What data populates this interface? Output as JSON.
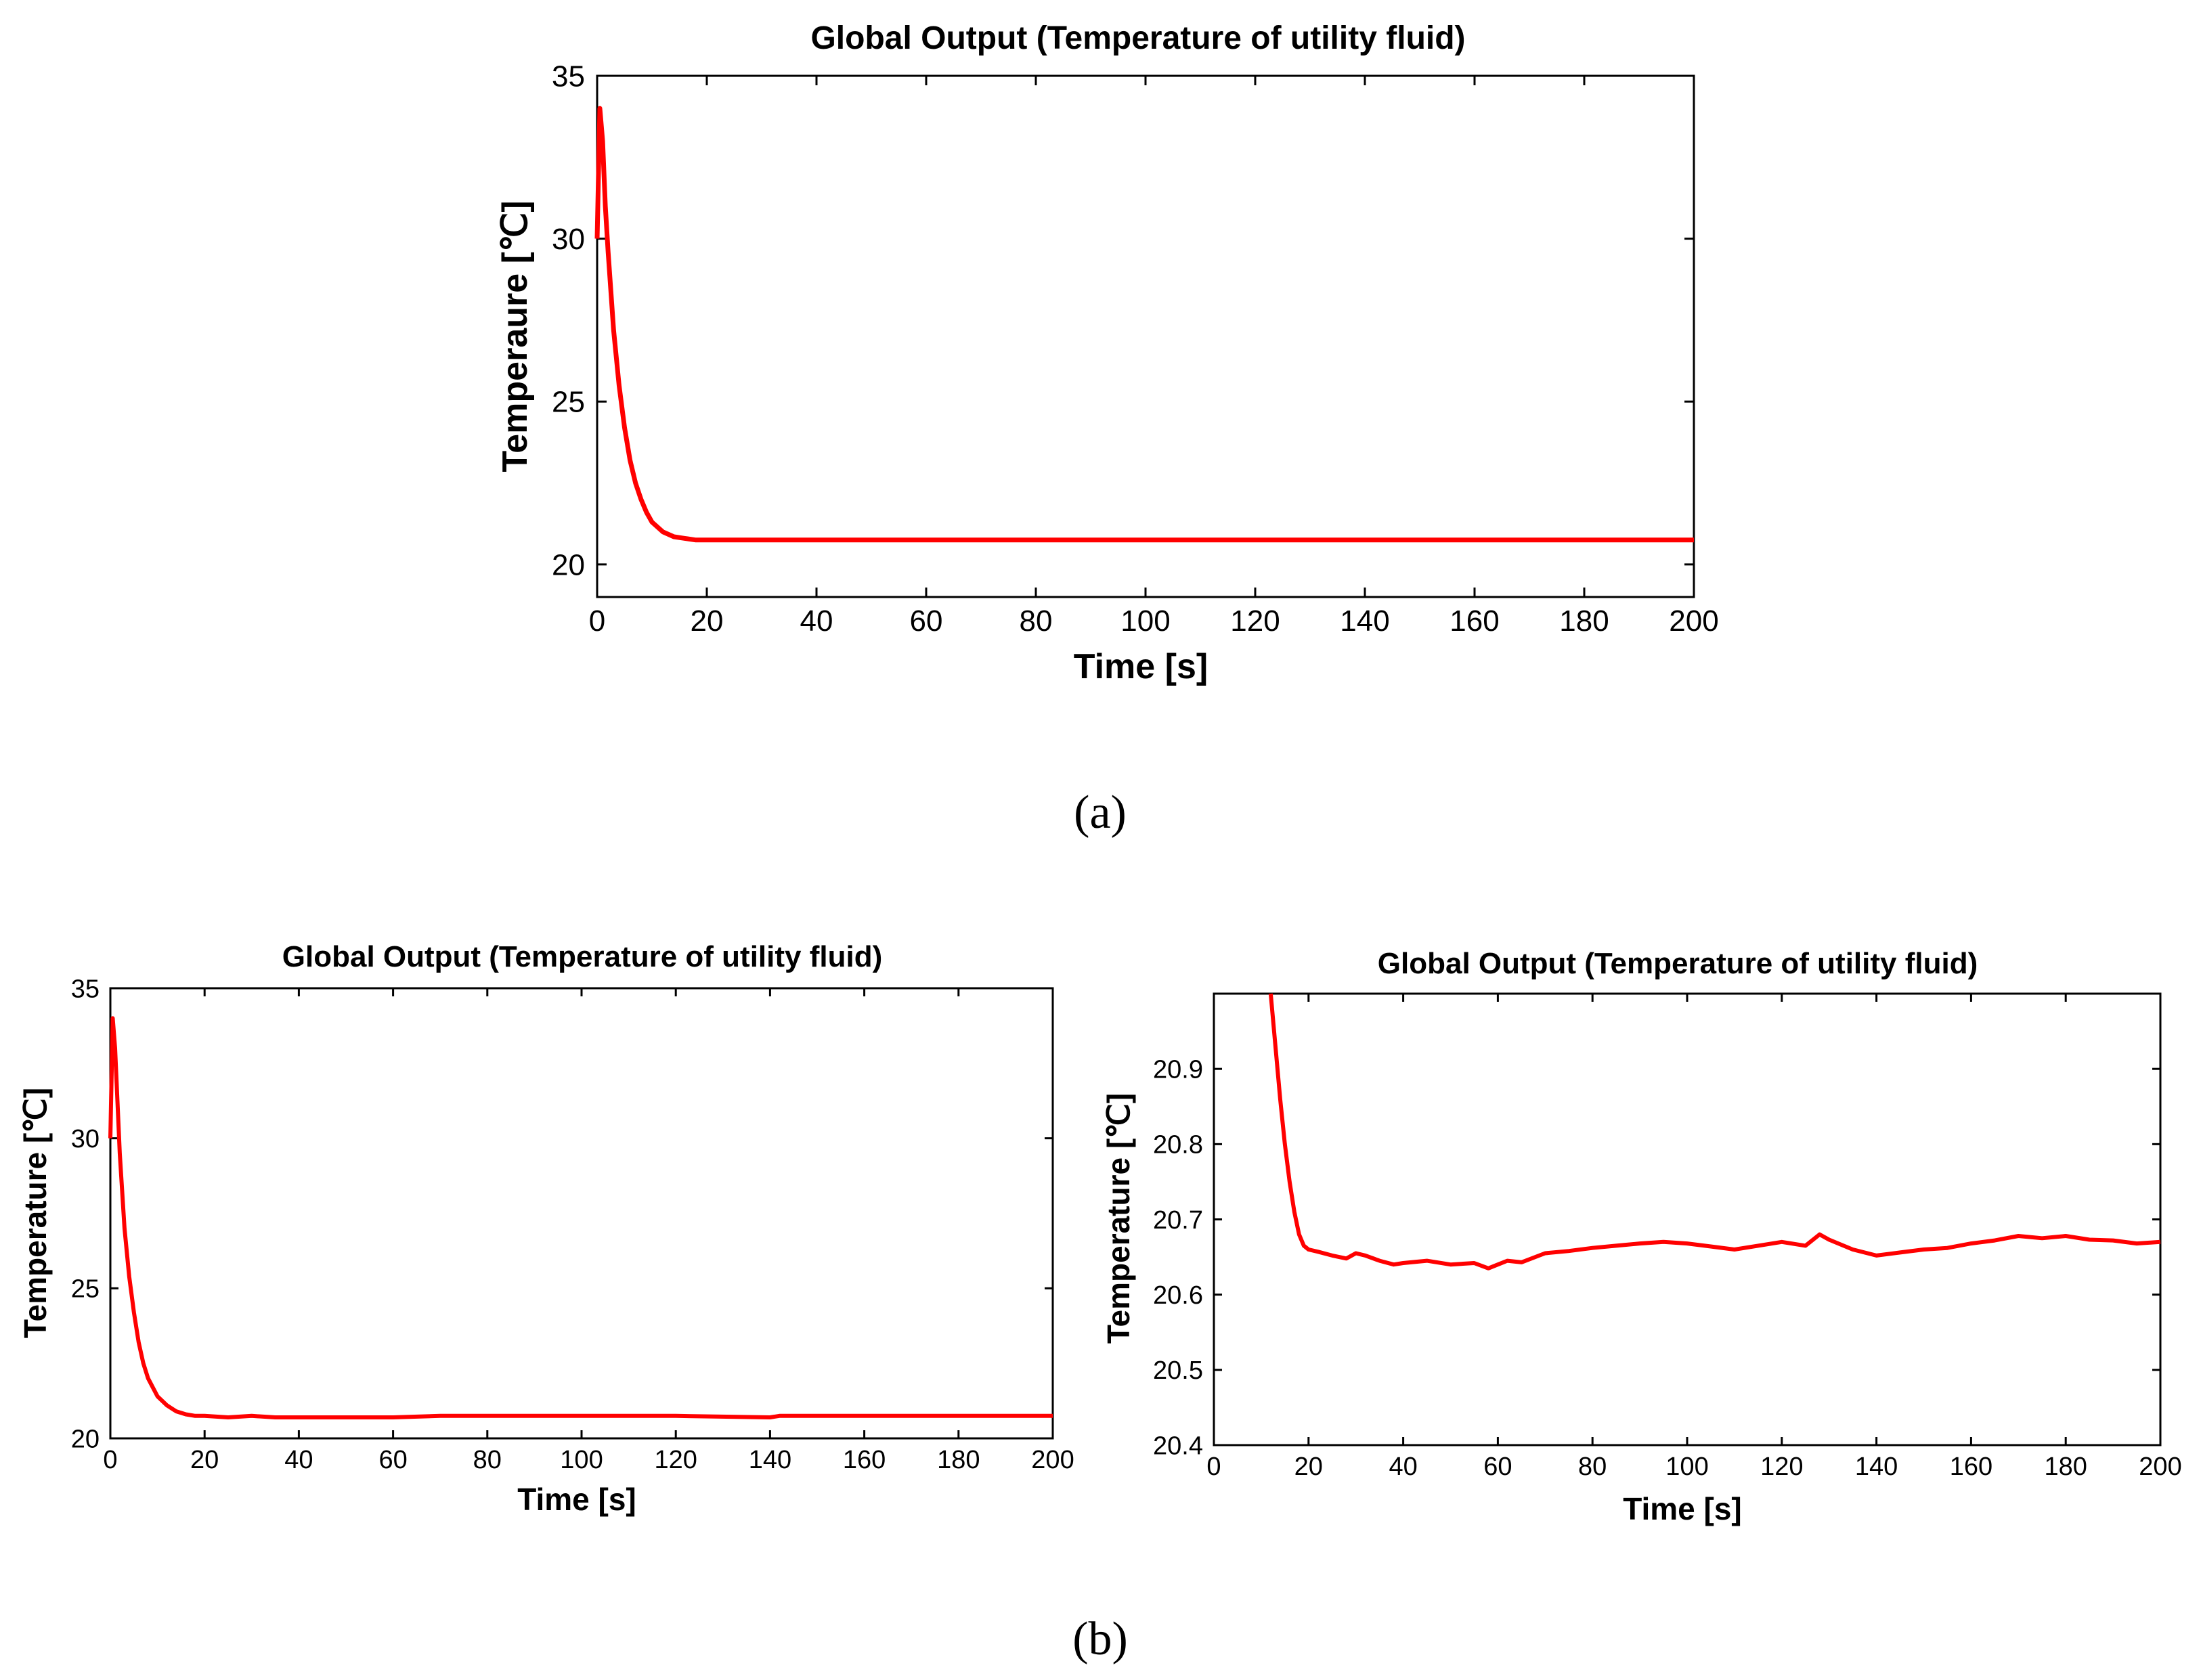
{
  "figure": {
    "panel_a_label": "(a)",
    "panel_b_label": "(b)"
  },
  "chart_data": [
    {
      "id": "a",
      "type": "line",
      "title": "Global Output (Temperature of utility fluid)",
      "xlabel": "Time [s]",
      "ylabel": "Temperaure [℃]",
      "xlim": [
        0,
        200
      ],
      "ylim": [
        19,
        35
      ],
      "xticks": [
        0,
        20,
        40,
        60,
        80,
        100,
        120,
        140,
        160,
        180,
        200
      ],
      "yticks": [
        20,
        25,
        30,
        35
      ],
      "ytick_decimals": 0,
      "grid": false,
      "color": "#ff0000",
      "series": [
        {
          "name": "utility fluid temperature",
          "x": [
            0,
            0.5,
            1,
            1.5,
            2,
            3,
            4,
            5,
            6,
            7,
            8,
            9,
            10,
            12,
            14,
            16,
            18,
            20,
            200
          ],
          "y": [
            30,
            34,
            33,
            31,
            29.6,
            27.2,
            25.5,
            24.2,
            23.2,
            22.5,
            22,
            21.6,
            21.3,
            21,
            20.85,
            20.8,
            20.75,
            20.75,
            20.75
          ]
        }
      ]
    },
    {
      "id": "b-left",
      "type": "line",
      "title": "Global Output (Temperature of utility fluid)",
      "xlabel": "Time [s]",
      "ylabel": "Temperature [℃]",
      "xlim": [
        0,
        200
      ],
      "ylim": [
        20,
        35
      ],
      "xticks": [
        0,
        20,
        40,
        60,
        80,
        100,
        120,
        140,
        160,
        180,
        200
      ],
      "yticks": [
        20,
        25,
        30,
        35
      ],
      "ytick_decimals": 0,
      "grid": false,
      "color": "#ff0000",
      "series": [
        {
          "name": "utility fluid temperature",
          "x": [
            0,
            0.5,
            1,
            2,
            3,
            4,
            5,
            6,
            7,
            8,
            10,
            12,
            14,
            16,
            18,
            20,
            25,
            30,
            35,
            40,
            60,
            70,
            80,
            100,
            120,
            140,
            142,
            160,
            200
          ],
          "y": [
            30,
            34,
            33,
            29.5,
            27,
            25.4,
            24.2,
            23.2,
            22.5,
            22,
            21.4,
            21.1,
            20.9,
            20.8,
            20.75,
            20.75,
            20.7,
            20.75,
            20.7,
            20.7,
            20.7,
            20.75,
            20.75,
            20.75,
            20.75,
            20.7,
            20.75,
            20.75,
            20.75
          ]
        }
      ]
    },
    {
      "id": "b-right",
      "type": "line",
      "title": "Global Output (Temperature of utility fluid)",
      "xlabel": "Time [s]",
      "ylabel": "Temperature [℃]",
      "xlim": [
        0,
        200
      ],
      "ylim": [
        20.4,
        21.0
      ],
      "xticks": [
        0,
        20,
        40,
        60,
        80,
        100,
        120,
        140,
        160,
        180,
        200
      ],
      "yticks": [
        20.4,
        20.5,
        20.6,
        20.7,
        20.8,
        20.9
      ],
      "ytick_decimals": 1,
      "grid": false,
      "color": "#ff0000",
      "series": [
        {
          "name": "utility fluid temperature",
          "x": [
            12,
            13,
            14,
            15,
            16,
            17,
            18,
            19,
            20,
            22,
            25,
            28,
            30,
            32,
            35,
            38,
            40,
            45,
            50,
            55,
            58,
            60,
            62,
            65,
            70,
            75,
            80,
            85,
            90,
            95,
            100,
            105,
            110,
            115,
            120,
            125,
            128,
            130,
            135,
            140,
            145,
            150,
            155,
            160,
            165,
            170,
            175,
            180,
            185,
            190,
            195,
            200
          ],
          "y": [
            21.0,
            20.93,
            20.86,
            20.8,
            20.75,
            20.71,
            20.68,
            20.665,
            20.66,
            20.657,
            20.652,
            20.648,
            20.655,
            20.652,
            20.645,
            20.64,
            20.642,
            20.645,
            20.64,
            20.642,
            20.635,
            20.64,
            20.645,
            20.643,
            20.655,
            20.658,
            20.662,
            20.665,
            20.668,
            20.67,
            20.668,
            20.664,
            20.66,
            20.665,
            20.67,
            20.665,
            20.68,
            20.673,
            20.66,
            20.652,
            20.656,
            20.66,
            20.662,
            20.668,
            20.672,
            20.678,
            20.675,
            20.678,
            20.673,
            20.672,
            20.668,
            20.67
          ]
        }
      ]
    }
  ]
}
